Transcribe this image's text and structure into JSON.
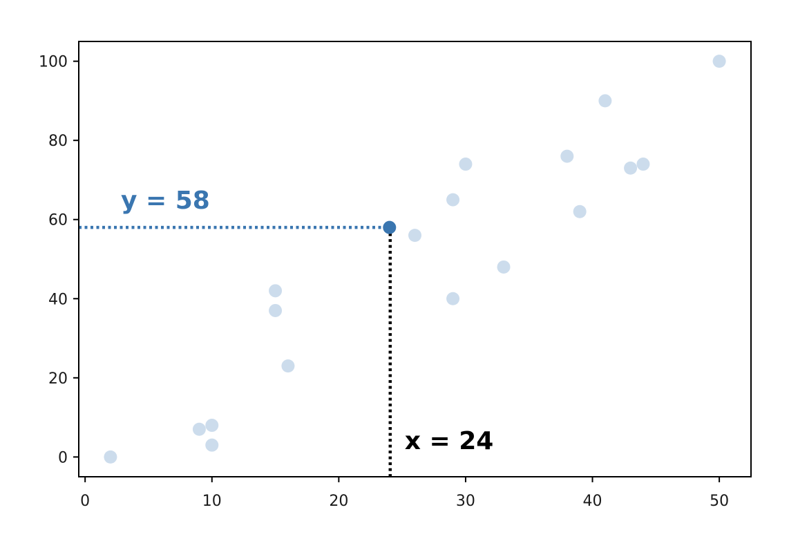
{
  "chart_data": {
    "type": "scatter",
    "title": "",
    "xlabel": "",
    "ylabel": "",
    "xlim": [
      -0.5,
      52.5
    ],
    "ylim": [
      -5,
      105
    ],
    "xticks": [
      0,
      10,
      20,
      30,
      40,
      50
    ],
    "yticks": [
      0,
      20,
      40,
      60,
      80,
      100
    ],
    "grid": false,
    "points": [
      {
        "x": 2,
        "y": 0
      },
      {
        "x": 9,
        "y": 7
      },
      {
        "x": 10,
        "y": 8
      },
      {
        "x": 10,
        "y": 3
      },
      {
        "x": 15,
        "y": 42
      },
      {
        "x": 15,
        "y": 37
      },
      {
        "x": 16,
        "y": 23
      },
      {
        "x": 26,
        "y": 56
      },
      {
        "x": 29,
        "y": 65
      },
      {
        "x": 29,
        "y": 40
      },
      {
        "x": 30,
        "y": 74
      },
      {
        "x": 33,
        "y": 48
      },
      {
        "x": 38,
        "y": 76
      },
      {
        "x": 39,
        "y": 62
      },
      {
        "x": 41,
        "y": 90
      },
      {
        "x": 43,
        "y": 73
      },
      {
        "x": 44,
        "y": 74
      },
      {
        "x": 50,
        "y": 100
      }
    ],
    "highlight": {
      "x": 24,
      "y": 58
    },
    "annotations": {
      "y_label": "y = 58",
      "x_label": "x = 24"
    },
    "colors": {
      "point": "#ccdcec",
      "highlight": "#3a76b0",
      "y_guide": "#3a76b0",
      "x_guide": "#000000"
    }
  }
}
